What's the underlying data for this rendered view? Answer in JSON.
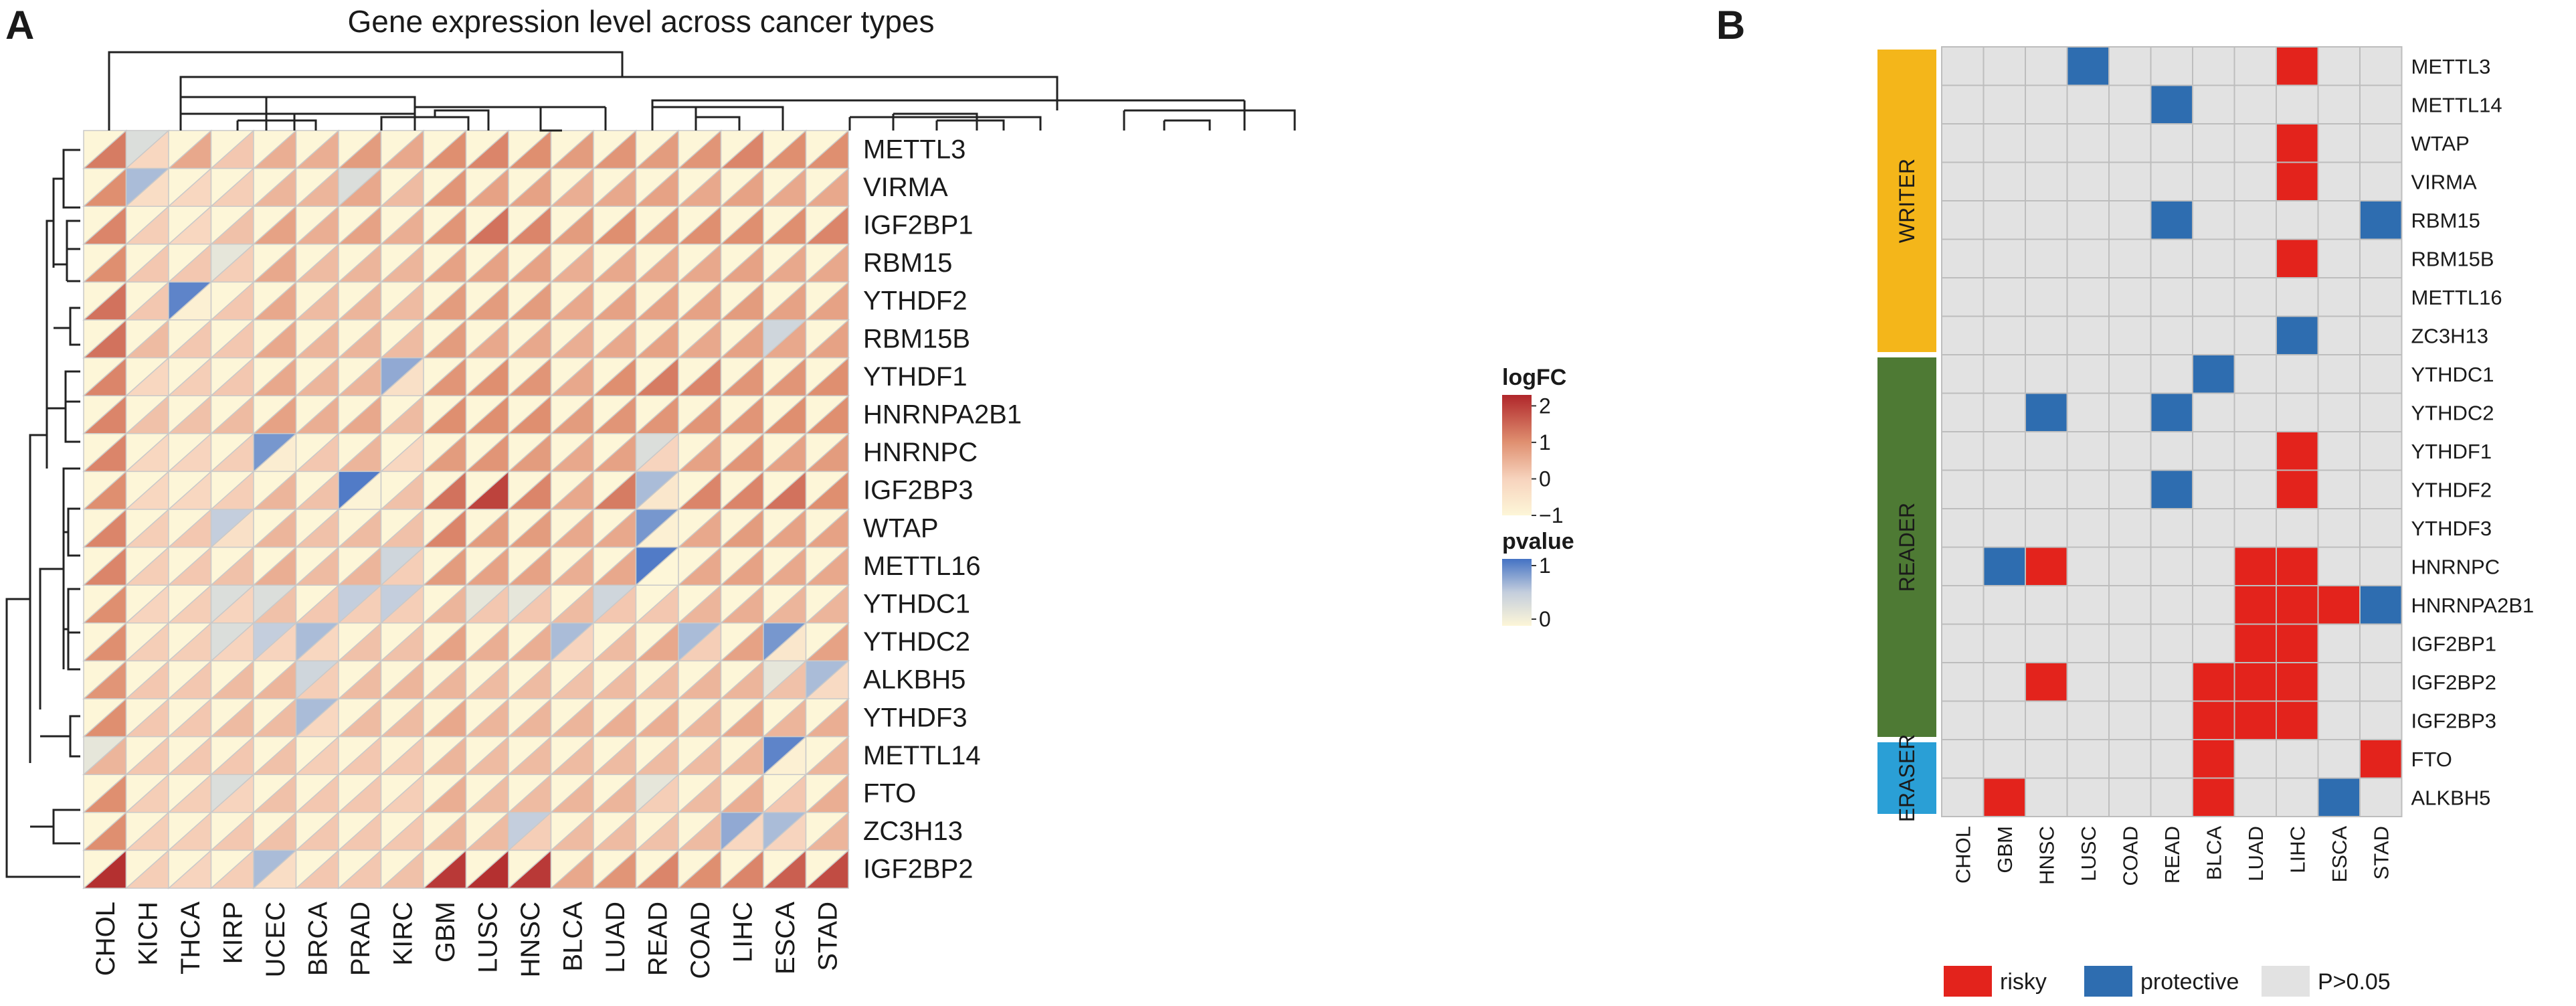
{
  "chart_data": [
    {
      "type": "heatmap",
      "panel_label": "A",
      "title": "Gene expression level across cancer types",
      "columns": [
        "CHOL",
        "KICH",
        "THCA",
        "KIRP",
        "UCEC",
        "BRCA",
        "PRAD",
        "KIRC",
        "GBM",
        "LUSC",
        "HNSC",
        "BLCA",
        "LUAD",
        "READ",
        "COAD",
        "LIHC",
        "ESCA",
        "STAD"
      ],
      "rows": [
        "METTL3",
        "VIRMA",
        "IGF2BP1",
        "RBM15",
        "YTHDF2",
        "RBM15B",
        "YTHDF1",
        "HNRNPA2B1",
        "HNRNPC",
        "IGF2BP3",
        "WTAP",
        "METTL16",
        "YTHDC1",
        "YTHDC2",
        "ALKBH5",
        "YTHDF3",
        "METTL14",
        "FTO",
        "ZC3H13",
        "IGF2BP2"
      ],
      "logfc_legend": {
        "title": "logFC",
        "ticks": [
          "2",
          "1",
          "0",
          "−1"
        ],
        "range": [
          -1,
          2.3
        ],
        "colors": [
          "#fdf6d8",
          "#f7d4be",
          "#df8f70",
          "#b0262a"
        ]
      },
      "pvalue_legend": {
        "title": "pvalue",
        "ticks": [
          "1",
          "0"
        ],
        "range": [
          0,
          1
        ],
        "colors": [
          "#fdf6d8",
          "#c4cedd",
          "#4472c4"
        ]
      },
      "logfc": [
        [
          1.4,
          0.0,
          0.8,
          0.3,
          0.7,
          0.7,
          1.0,
          0.8,
          1.2,
          1.3,
          1.2,
          1.0,
          1.1,
          1.0,
          1.1,
          1.3,
          1.2,
          1.2
        ],
        [
          1.2,
          -0.2,
          0.0,
          0.2,
          0.6,
          0.6,
          0.8,
          0.5,
          1.1,
          0.9,
          0.9,
          0.7,
          0.8,
          0.9,
          0.8,
          0.9,
          0.8,
          0.8
        ],
        [
          1.3,
          0.2,
          0.0,
          0.4,
          0.9,
          0.7,
          0.9,
          0.7,
          1.1,
          1.5,
          1.3,
          1.0,
          1.2,
          1.1,
          1.2,
          1.2,
          1.2,
          1.3
        ],
        [
          1.2,
          0.3,
          0.3,
          0.2,
          0.8,
          0.5,
          0.6,
          0.6,
          0.9,
          0.9,
          0.9,
          0.7,
          0.8,
          0.8,
          0.8,
          0.9,
          0.8,
          0.8
        ],
        [
          1.5,
          0.3,
          -0.8,
          0.3,
          0.8,
          0.5,
          0.6,
          0.5,
          1.0,
          1.0,
          1.0,
          0.8,
          0.9,
          0.9,
          0.9,
          1.0,
          0.9,
          0.9
        ],
        [
          1.5,
          0.5,
          0.3,
          0.3,
          0.8,
          0.6,
          0.6,
          0.5,
          1.0,
          0.8,
          0.8,
          0.7,
          0.8,
          0.9,
          0.8,
          0.9,
          0.8,
          0.9
        ],
        [
          1.3,
          0.0,
          0.2,
          0.3,
          0.8,
          0.6,
          0.6,
          -0.3,
          1.1,
          1.2,
          1.1,
          0.8,
          1.2,
          1.4,
          1.3,
          1.1,
          1.1,
          1.2
        ],
        [
          1.3,
          0.4,
          0.4,
          0.5,
          0.9,
          0.7,
          0.8,
          0.5,
          1.2,
          1.2,
          1.2,
          1.0,
          1.1,
          1.1,
          1.1,
          1.1,
          1.2,
          1.2
        ],
        [
          1.3,
          0.0,
          0.1,
          0.2,
          -0.7,
          0.3,
          0.6,
          0.0,
          1.0,
          1.1,
          1.0,
          0.8,
          0.9,
          0.1,
          0.9,
          1.1,
          0.9,
          1.0
        ],
        [
          1.2,
          0.0,
          0.0,
          0.2,
          0.6,
          0.4,
          -0.9,
          0.4,
          1.5,
          2.0,
          1.3,
          0.8,
          1.4,
          -0.5,
          1.3,
          1.3,
          1.5,
          1.2
        ],
        [
          1.3,
          0.2,
          0.3,
          -0.3,
          0.6,
          0.4,
          0.5,
          0.4,
          1.3,
          1.0,
          1.0,
          0.8,
          0.8,
          -0.8,
          0.8,
          1.0,
          0.9,
          0.9
        ],
        [
          1.3,
          0.2,
          0.3,
          0.4,
          0.7,
          0.5,
          0.6,
          0.2,
          1.0,
          0.9,
          0.9,
          0.7,
          0.8,
          -1.0,
          0.8,
          0.9,
          0.8,
          0.8
        ],
        [
          1.2,
          0.1,
          0.2,
          0.1,
          0.4,
          0.3,
          0.2,
          0.2,
          0.6,
          0.3,
          0.3,
          0.5,
          0.3,
          0.3,
          0.6,
          0.7,
          0.6,
          0.6
        ],
        [
          1.2,
          0.2,
          0.2,
          0.1,
          0.1,
          0.0,
          0.4,
          0.4,
          0.9,
          0.7,
          0.7,
          0.1,
          0.5,
          0.8,
          0.2,
          0.9,
          -0.5,
          0.9
        ],
        [
          1.1,
          0.3,
          0.3,
          0.5,
          0.6,
          0.2,
          0.5,
          0.6,
          0.6,
          0.5,
          0.5,
          0.4,
          0.5,
          0.5,
          0.6,
          0.6,
          0.4,
          -0.1
        ],
        [
          1.2,
          0.3,
          0.3,
          0.5,
          0.5,
          0.0,
          0.5,
          0.5,
          0.8,
          0.6,
          0.6,
          0.6,
          0.7,
          0.7,
          0.6,
          0.8,
          0.6,
          0.7
        ],
        [
          0.6,
          0.3,
          0.3,
          0.3,
          0.4,
          0.2,
          0.3,
          0.3,
          0.6,
          0.5,
          0.5,
          0.5,
          0.5,
          0.5,
          0.5,
          0.6,
          -0.8,
          0.6
        ],
        [
          1.2,
          0.2,
          0.2,
          0.1,
          0.4,
          0.3,
          0.3,
          0.2,
          0.7,
          0.5,
          0.5,
          0.6,
          0.6,
          0.2,
          0.5,
          0.7,
          0.3,
          0.7
        ],
        [
          1.2,
          0.2,
          0.2,
          0.3,
          0.4,
          0.3,
          0.3,
          0.3,
          0.6,
          0.5,
          0.2,
          0.5,
          0.5,
          0.4,
          0.5,
          0.0,
          0.1,
          0.6
        ],
        [
          2.2,
          0.2,
          0.1,
          0.2,
          -0.2,
          0.3,
          0.3,
          0.4,
          2.1,
          2.2,
          2.1,
          0.8,
          1.1,
          1.3,
          1.2,
          1.3,
          1.7,
          1.9
        ]
      ],
      "pvalue": [
        [
          0,
          0.3,
          0,
          0,
          0,
          0,
          0,
          0,
          0,
          0,
          0,
          0,
          0,
          0,
          0,
          0,
          0,
          0
        ],
        [
          0,
          0.6,
          0,
          0,
          0,
          0,
          0.3,
          0,
          0,
          0,
          0,
          0,
          0,
          0,
          0,
          0,
          0,
          0
        ],
        [
          0,
          0,
          0,
          0,
          0,
          0,
          0,
          0,
          0,
          0,
          0,
          0,
          0,
          0,
          0,
          0,
          0,
          0
        ],
        [
          0,
          0,
          0,
          0.2,
          0,
          0,
          0,
          0,
          0,
          0,
          0,
          0,
          0,
          0,
          0,
          0,
          0,
          0
        ],
        [
          0,
          0,
          0.9,
          0,
          0,
          0,
          0,
          0,
          0,
          0,
          0,
          0,
          0,
          0,
          0,
          0,
          0,
          0
        ],
        [
          0,
          0,
          0,
          0,
          0,
          0,
          0,
          0,
          0,
          0,
          0,
          0,
          0,
          0,
          0,
          0,
          0.4,
          0
        ],
        [
          0,
          0,
          0,
          0,
          0,
          0,
          0,
          0.7,
          0,
          0,
          0,
          0,
          0,
          0,
          0,
          0,
          0,
          0
        ],
        [
          0,
          0,
          0,
          0,
          0,
          0,
          0,
          0,
          0,
          0,
          0,
          0,
          0,
          0,
          0,
          0,
          0,
          0
        ],
        [
          0,
          0,
          0,
          0,
          0.8,
          0,
          0,
          0,
          0,
          0,
          0,
          0,
          0,
          0.3,
          0,
          0,
          0,
          0
        ],
        [
          0,
          0,
          0,
          0,
          0,
          0,
          0.95,
          0,
          0,
          0,
          0,
          0,
          0,
          0.6,
          0,
          0,
          0,
          0
        ],
        [
          0,
          0,
          0,
          0.5,
          0,
          0,
          0,
          0,
          0,
          0,
          0,
          0,
          0,
          0.8,
          0,
          0,
          0,
          0
        ],
        [
          0,
          0,
          0,
          0,
          0,
          0,
          0,
          0.4,
          0,
          0,
          0,
          0,
          0,
          0.95,
          0,
          0,
          0,
          0
        ],
        [
          0,
          0,
          0,
          0.3,
          0.3,
          0,
          0.5,
          0.5,
          0,
          0.2,
          0.2,
          0,
          0.4,
          0,
          0,
          0,
          0,
          0
        ],
        [
          0,
          0,
          0,
          0.3,
          0.5,
          0.6,
          0,
          0,
          0,
          0,
          0,
          0.6,
          0,
          0,
          0.6,
          0,
          0.8,
          0
        ],
        [
          0,
          0,
          0,
          0,
          0,
          0.4,
          0,
          0,
          0,
          0,
          0,
          0,
          0,
          0,
          0,
          0,
          0.2,
          0.6
        ],
        [
          0,
          0,
          0,
          0,
          0,
          0.6,
          0,
          0,
          0,
          0,
          0,
          0,
          0,
          0,
          0,
          0,
          0,
          0
        ],
        [
          0.2,
          0,
          0,
          0,
          0,
          0,
          0,
          0,
          0,
          0,
          0,
          0,
          0,
          0,
          0,
          0,
          0.9,
          0
        ],
        [
          0,
          0,
          0,
          0.3,
          0,
          0,
          0,
          0,
          0,
          0,
          0,
          0,
          0,
          0.2,
          0,
          0,
          0,
          0
        ],
        [
          0,
          0,
          0,
          0,
          0,
          0,
          0,
          0,
          0,
          0,
          0.5,
          0,
          0,
          0,
          0,
          0.7,
          0.6,
          0
        ],
        [
          0,
          0,
          0,
          0,
          0.6,
          0,
          0,
          0,
          0,
          0,
          0,
          0,
          0,
          0,
          0,
          0,
          0,
          0
        ]
      ]
    },
    {
      "type": "heatmap",
      "panel_label": "B",
      "columns": [
        "CHOL",
        "GBM",
        "HNSC",
        "LUSC",
        "COAD",
        "READ",
        "BLCA",
        "LUAD",
        "LIHC",
        "ESCA",
        "STAD"
      ],
      "rows": [
        "METTL3",
        "METTL14",
        "WTAP",
        "VIRMA",
        "RBM15",
        "RBM15B",
        "METTL16",
        "ZC3H13",
        "YTHDC1",
        "YTHDC2",
        "YTHDF1",
        "YTHDF2",
        "YTHDF3",
        "HNRNPC",
        "HNRNPA2B1",
        "IGF2BP1",
        "IGF2BP2",
        "IGF2BP3",
        "FTO",
        "ALKBH5"
      ],
      "groups": [
        {
          "name": "WRITER",
          "start": 0,
          "count": 8,
          "color": "#f4b61a"
        },
        {
          "name": "READER",
          "start": 8,
          "count": 10,
          "color": "#4e7a34"
        },
        {
          "name": "ERASER",
          "start": 18,
          "count": 2,
          "color": "#2a9fd6"
        }
      ],
      "legend": [
        {
          "code": "R",
          "label": "risky",
          "color": "#e3231c"
        },
        {
          "code": "P",
          "label": "protective",
          "color": "#2e6db0"
        },
        {
          "code": "N",
          "label": "P>0.05",
          "color": "#e2e2e2"
        }
      ],
      "status": [
        "NNNPNNNNRNN",
        "NNNNNPNNNNN",
        "NNNNNNNNRNN",
        "NNNNNNNNRNN",
        "NNNNNPNNNNP",
        "NNNNNNNNRNN",
        "NNNNNNNNNNN",
        "NNNNNNNNPNN",
        "NNNNNNPNNNN",
        "NNPNNPNNNNN",
        "NNNNNNNNRNN",
        "NNNNNPNNRNN",
        "NNNNNNNNNNN",
        "NPRNNNNRRNN",
        "NNNNNNNRRRP",
        "NNNNNNNRRNN",
        "NNRNNNRRRNN",
        "NNNNNNRRRNN",
        "NNNNNNRNNNR",
        "NRNNNNRNNPN"
      ]
    }
  ]
}
